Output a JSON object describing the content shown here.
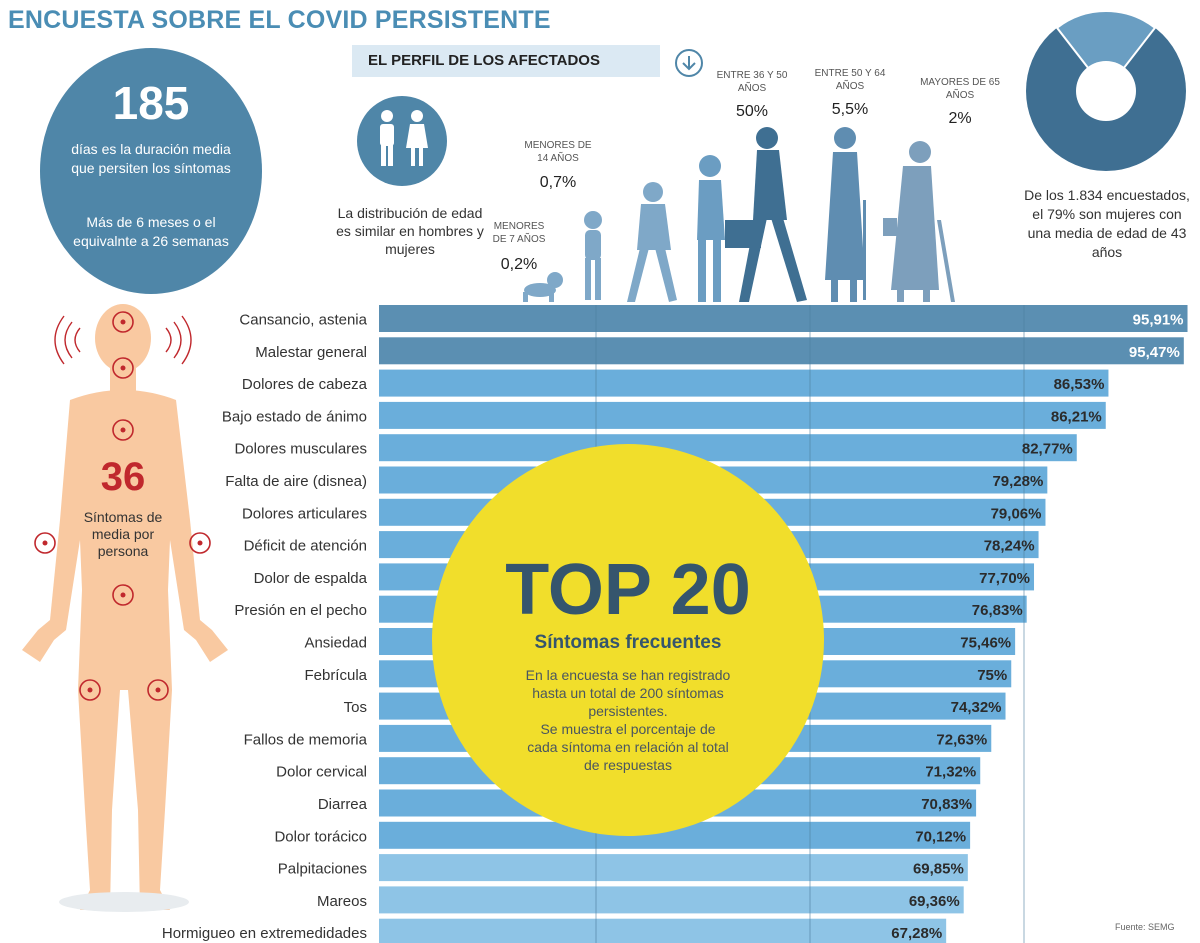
{
  "title": "ENCUESTA SOBRE EL COVID PERSISTENTE",
  "duration": {
    "number": "185",
    "text1": "días es la duración media que persiten los síntomas",
    "text2": "Más de 6 meses o el equivalnte a 26 semanas"
  },
  "profile": {
    "banner": "EL PERFIL DE LOS AFECTADOS",
    "gender_note": "La distribución de edad es similar en hombres y mujeres",
    "age_groups": [
      {
        "label": "MENORES DE 7 AÑOS",
        "pct": "0,2%"
      },
      {
        "label": "MENORES DE 14 AÑOS",
        "pct": "0,7%"
      },
      {
        "label": "ENTRE 36 Y 50 AÑOS",
        "pct": "50%"
      },
      {
        "label": "ENTRE 50 Y 64 AÑOS",
        "pct": "5,5%"
      },
      {
        "label": "MAYORES DE 65 AÑOS",
        "pct": "2%"
      }
    ]
  },
  "respondents": {
    "text": "De los 1.834 encuestados, el 79% son mujeres con una media de edad de 43 años",
    "women_share": 79
  },
  "symptoms_per_person": {
    "number": "36",
    "text": "Síntomas de media por persona"
  },
  "top20": {
    "title": "TOP 20",
    "subtitle": "Síntomas frecuentes",
    "text": "En la encuesta se han registrado hasta un total de 200 síntomas persistentes. Se muestra el porcentaje de cada síntoma en relación al total de respuestas"
  },
  "source": "Fuente: SEMG",
  "colors": {
    "title": "#4a8db4",
    "bar_dark": "#5b8fb2",
    "bar_mid": "#6aaedb",
    "bar_light": "#8ec4e6",
    "yellow": "#f1de2b",
    "skin": "#f9c9a1",
    "red": "#c0282d"
  },
  "chart_data": {
    "type": "bar",
    "orientation": "horizontal",
    "categories": [
      "Cansancio, astenia",
      "Malestar general",
      "Dolores de cabeza",
      "Bajo estado de ánimo",
      "Dolores musculares",
      "Falta de aire (disnea)",
      "Dolores articulares",
      "Déficit de atención",
      "Dolor de  espalda",
      "Presión en el pecho",
      "Ansiedad",
      "Febrícula",
      "Tos",
      "Fallos de memoria",
      "Dolor cervical",
      "Diarrea",
      "Dolor torácico",
      "Palpitaciones",
      "Mareos",
      "Hormigueo en extremedidades"
    ],
    "values": [
      95.91,
      95.47,
      86.53,
      86.21,
      82.77,
      79.28,
      79.06,
      78.24,
      77.7,
      76.83,
      75.46,
      75,
      74.32,
      72.63,
      71.32,
      70.83,
      70.12,
      69.85,
      69.36,
      67.28
    ],
    "labels": [
      "95,91%",
      "95,47%",
      "86,53%",
      "86,21%",
      "82,77%",
      "79,28%",
      "79,06%",
      "78,24%",
      "77,70%",
      "76,83%",
      "75,46%",
      "75%",
      "74,32%",
      "72,63%",
      "71,32%",
      "70,83%",
      "70,12%",
      "69,85%",
      "69,36%",
      "67,28%"
    ],
    "unit": "%"
  }
}
